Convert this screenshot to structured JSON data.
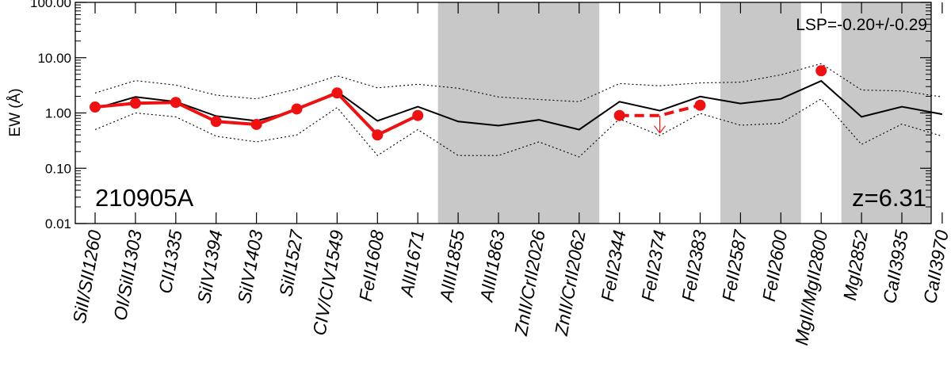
{
  "chart_data": {
    "type": "line",
    "ylabel": "EW (Å)",
    "yscale": "log",
    "ylim": [
      0.01,
      100
    ],
    "yticks": [
      "0.01",
      "0.10",
      "1.00",
      "10.00",
      "100.00"
    ],
    "categories": [
      "SiII/SII1260",
      "OI/SiII1303",
      "CII1335",
      "SiIV1394",
      "SiIV1403",
      "SiII1527",
      "CIV/CIV1549",
      "FeII1608",
      "AlII1671",
      "AlIII1855",
      "AlIII1863",
      "ZnII/CrII2026",
      "ZnII/CrII2062",
      "FeII2344",
      "FeII2374",
      "FeII2383",
      "FeII2587",
      "FeII2600",
      "MgII/MgII2800",
      "MgI2852",
      "CaII3935",
      "CaII3970"
    ],
    "shaded_regions": [
      [
        8.5,
        12.5
      ],
      [
        15.5,
        17.5
      ],
      [
        18.5,
        21.5
      ]
    ],
    "annotations": {
      "grb": "210905A",
      "redshift": "z=6.31",
      "lsp": "LSP=-0.20+/-0.29"
    },
    "series": [
      {
        "style": "solid-black",
        "values": [
          1.2,
          1.95,
          1.6,
          0.88,
          0.72,
          1.12,
          2.45,
          0.72,
          1.3,
          0.7,
          0.59,
          0.75,
          0.5,
          1.6,
          1.1,
          1.98,
          1.48,
          1.8,
          3.8,
          0.85,
          1.3,
          0.95
        ]
      },
      {
        "style": "dotted-upper",
        "values": [
          2.3,
          3.85,
          3.2,
          2.1,
          1.8,
          2.7,
          4.7,
          2.85,
          3.3,
          2.8,
          1.95,
          1.75,
          1.6,
          3.4,
          3.1,
          3.5,
          3.6,
          4.9,
          7.8,
          2.6,
          2.5,
          1.95
        ]
      },
      {
        "style": "dotted-lower",
        "values": [
          0.5,
          1.0,
          0.85,
          0.38,
          0.3,
          0.4,
          1.25,
          0.17,
          0.5,
          0.17,
          0.17,
          0.3,
          0.16,
          0.78,
          0.39,
          0.98,
          0.6,
          0.65,
          1.8,
          0.27,
          0.63,
          0.38
        ]
      },
      {
        "style": "red-measured",
        "points": [
          [
            0,
            1.28
          ],
          [
            1,
            1.5
          ],
          [
            2,
            1.55
          ],
          [
            3,
            0.7
          ],
          [
            4,
            0.62
          ],
          [
            5,
            1.18
          ],
          [
            6,
            2.3
          ],
          [
            7,
            0.4
          ],
          [
            8,
            0.9
          ],
          [
            13,
            0.9
          ],
          [
            15,
            1.38
          ],
          [
            18,
            5.8
          ]
        ]
      },
      {
        "style": "red-dashed",
        "points": [
          [
            13,
            0.9
          ],
          [
            14,
            0.9
          ],
          [
            15,
            1.38
          ]
        ]
      },
      {
        "style": "red-upper-limit",
        "points": [
          [
            14,
            0.9
          ]
        ]
      }
    ]
  }
}
